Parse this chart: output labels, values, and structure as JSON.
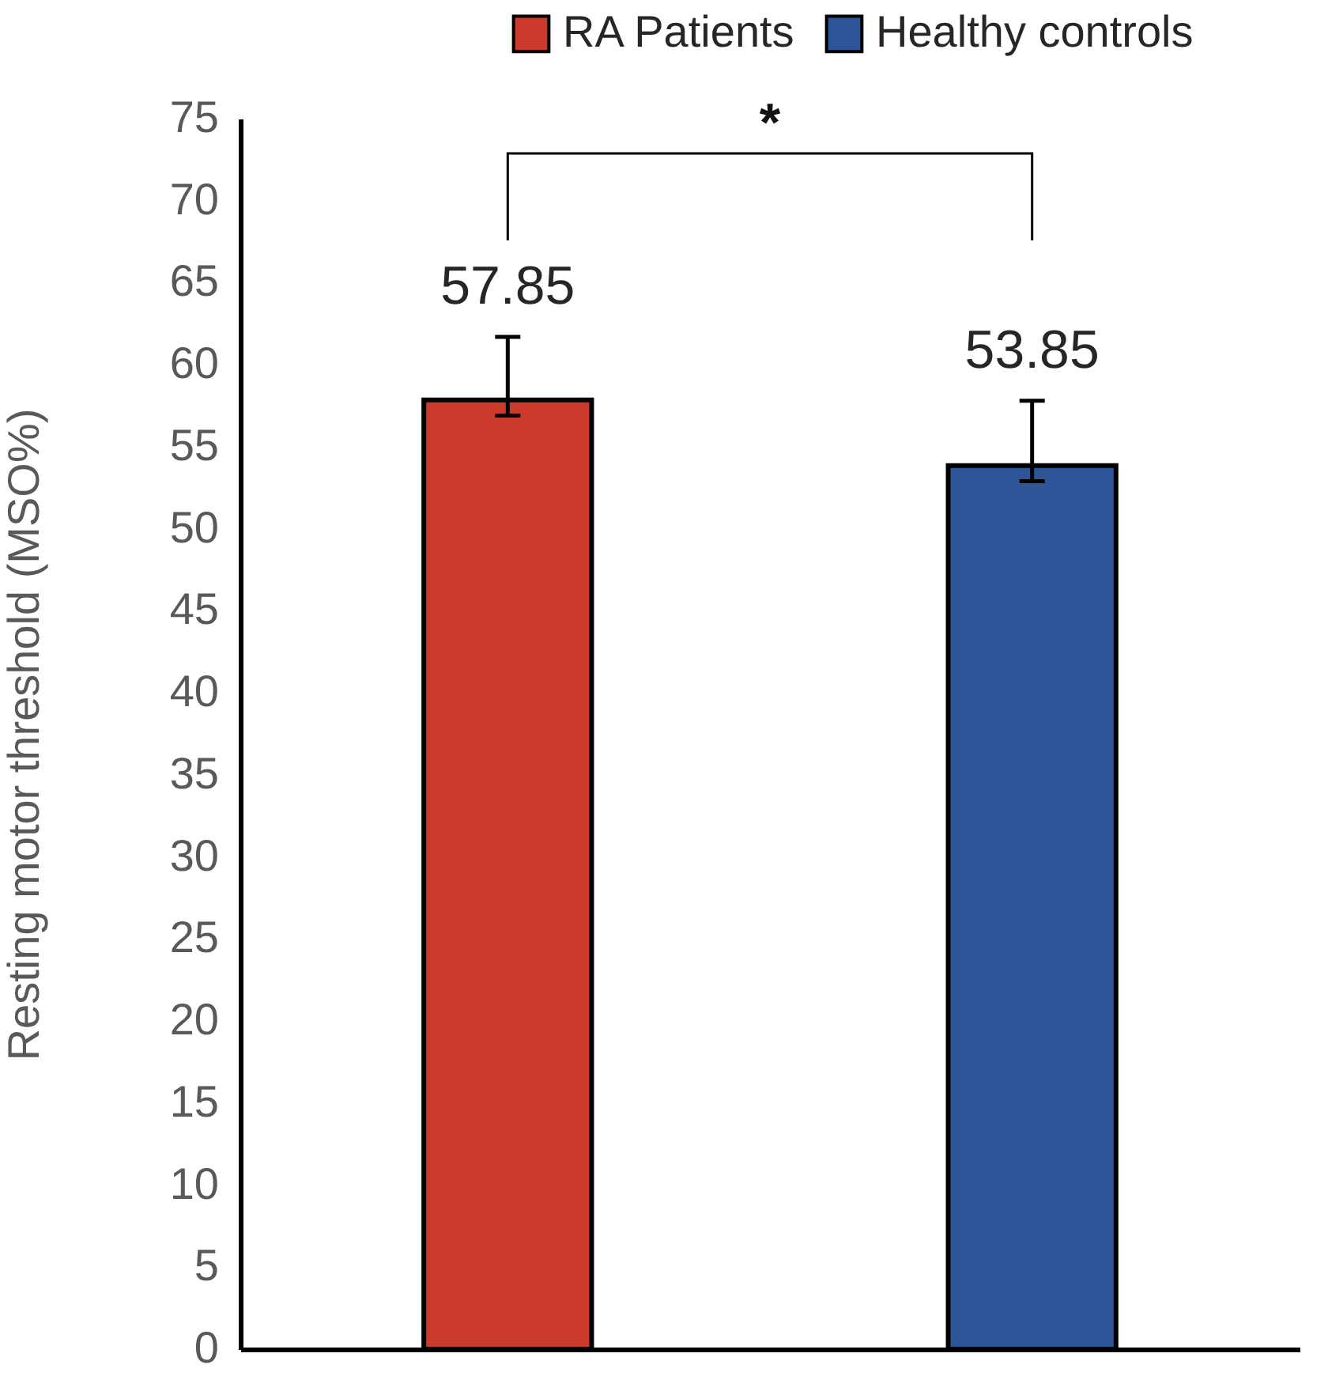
{
  "chart_data": {
    "type": "bar",
    "ylabel": "Resting motor threshold (MSO%)",
    "categories": [
      null,
      null
    ],
    "series": [
      {
        "name": "RA Patients",
        "color": "#cc3a2b",
        "values": [
          57.85,
          null
        ],
        "errors": [
          [
            56.9,
            61.7
          ],
          null
        ]
      },
      {
        "name": "Healthy controls",
        "color": "#2e5597",
        "values": [
          null,
          53.85
        ],
        "errors": [
          null,
          [
            52.9,
            57.8
          ]
        ]
      }
    ],
    "ylim": [
      0,
      75
    ],
    "yticks": [
      0,
      5,
      10,
      15,
      20,
      25,
      30,
      35,
      40,
      45,
      50,
      55,
      60,
      65,
      70,
      75
    ],
    "data_labels": true,
    "legend": "top right",
    "tick_labels": "y",
    "annotations": [
      "*"
    ]
  }
}
